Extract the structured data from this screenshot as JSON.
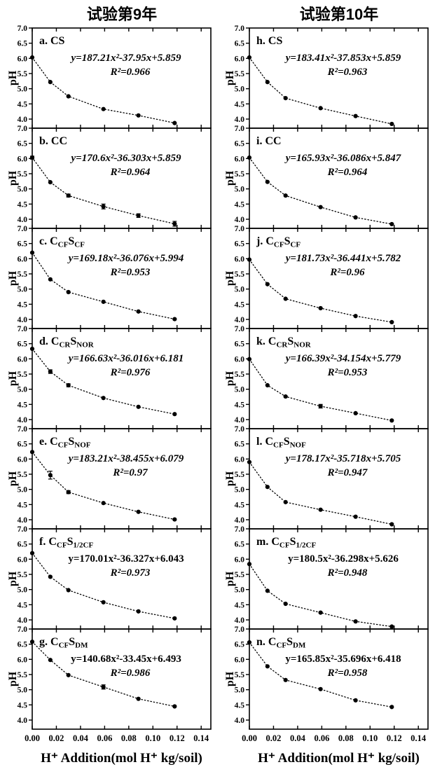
{
  "chart_data": {
    "type": "line",
    "marker": "filled-circle",
    "line_style": "dotted",
    "color": "#000000",
    "ylabel": "pH",
    "xlabel": "H⁺ Addition(mol H⁺ kg/soil)",
    "xlim": [
      0,
      0.148
    ],
    "ylim": [
      3.7,
      7.0
    ],
    "x_ticks": [
      "0.00",
      "0.02",
      "0.04",
      "0.06",
      "0.08",
      "0.10",
      "0.12",
      "0.14"
    ],
    "x_tick_values": [
      0,
      0.02,
      0.04,
      0.06,
      0.08,
      0.1,
      0.12,
      0.14
    ],
    "y_ticks": [
      "7.0",
      "6.5",
      "6.0",
      "5.5",
      "5.0",
      "4.5",
      "4.0"
    ],
    "y_tick_values": [
      7.0,
      6.5,
      6.0,
      5.5,
      5.0,
      4.5,
      4.0
    ],
    "x": [
      0,
      0.015,
      0.03,
      0.059,
      0.088,
      0.118
    ],
    "columns": [
      {
        "title": "试验第9年",
        "panels": [
          {
            "id": "a",
            "treatment": "CS",
            "equation": "y=187.21x²-37.95x+5.859",
            "eq_italic": true,
            "r2": "R²=0.966",
            "values": [
              6.03,
              5.22,
              4.75,
              4.33,
              4.12,
              3.87
            ],
            "err": [
              0,
              0,
              0,
              0,
              0,
              0
            ]
          },
          {
            "id": "b",
            "treatment": "CC",
            "equation": "y=170.6x²-36.303x+5.859",
            "eq_italic": true,
            "r2": "R²=0.964",
            "values": [
              6.03,
              5.22,
              4.78,
              4.42,
              4.12,
              3.85
            ],
            "err": [
              0.05,
              0,
              0.05,
              0.08,
              0.06,
              0.08
            ]
          },
          {
            "id": "c",
            "treatment": "C[CF]S[CF]",
            "equation": "y=169.18x²-36.076x+5.994",
            "eq_italic": true,
            "r2": "R²=0.953",
            "values": [
              6.2,
              5.32,
              4.9,
              4.58,
              4.26,
              4.01
            ],
            "err": [
              0,
              0,
              0,
              0,
              0,
              0
            ]
          },
          {
            "id": "d",
            "treatment": "C[CR]S[NOR]",
            "equation": "y=166.63x²-36.016x+6.181",
            "eq_italic": true,
            "r2": "R²=0.976",
            "values": [
              6.33,
              5.58,
              5.13,
              4.71,
              4.42,
              4.18
            ],
            "err": [
              0,
              0.06,
              0.05,
              0,
              0,
              0
            ]
          },
          {
            "id": "e",
            "treatment": "C[CF]S[NOF]",
            "equation": "y=183.21x²-38.455x+6.079",
            "eq_italic": true,
            "r2": "R²=0.97",
            "values": [
              6.23,
              5.47,
              4.91,
              4.55,
              4.26,
              4.01
            ],
            "err": [
              0,
              0.13,
              0.05,
              0,
              0,
              0
            ]
          },
          {
            "id": "f",
            "treatment": "C[CF]S[1/2CF]",
            "equation": "y=170.01x²-36.327x+6.043",
            "eq_italic": false,
            "r2": "R²=0.973",
            "values": [
              6.2,
              5.42,
              4.98,
              4.58,
              4.28,
              4.05
            ],
            "err": [
              0,
              0,
              0,
              0,
              0,
              0
            ]
          },
          {
            "id": "g",
            "treatment": "C[CF]S[DM]",
            "equation": "y=140.68x²-33.45x+6.493",
            "eq_italic": false,
            "r2": "R²=0.986",
            "values": [
              6.58,
              5.98,
              5.48,
              5.09,
              4.7,
              4.45
            ],
            "err": [
              0,
              0,
              0,
              0.07,
              0,
              0
            ]
          }
        ]
      },
      {
        "title": "试验第10年",
        "panels": [
          {
            "id": "h",
            "treatment": "CS",
            "equation": "y=183.41x²-37.853x+5.859",
            "eq_italic": true,
            "r2": "R²=0.963",
            "values": [
              6.03,
              5.22,
              4.69,
              4.36,
              4.1,
              3.84
            ],
            "err": [
              0,
              0,
              0,
              0,
              0,
              0
            ]
          },
          {
            "id": "i",
            "treatment": "CC",
            "equation": "y=165.93x²-36.086x+5.847",
            "eq_italic": true,
            "r2": "R²=0.964",
            "values": [
              6.03,
              5.23,
              4.78,
              4.4,
              4.06,
              3.84
            ],
            "err": [
              0,
              0,
              0,
              0,
              0,
              0
            ]
          },
          {
            "id": "j",
            "treatment": "C[CF]S[CF]",
            "equation": "y=181.73x²-36.441x+5.782",
            "eq_italic": true,
            "r2": "R²=0.96",
            "values": [
              5.97,
              5.16,
              4.68,
              4.37,
              4.11,
              3.91
            ],
            "err": [
              0,
              0,
              0,
              0,
              0,
              0
            ]
          },
          {
            "id": "k",
            "treatment": "C[CR]S[NOR]",
            "equation": "y=166.39x²-34.154x+5.779",
            "eq_italic": true,
            "r2": "R²=0.953",
            "values": [
              5.99,
              5.13,
              4.76,
              4.44,
              4.21,
              3.97
            ],
            "err": [
              0,
              0,
              0,
              0.06,
              0,
              0
            ]
          },
          {
            "id": "l",
            "treatment": "C[CF]S[NOF]",
            "equation": "y=178.17x²-35.718x+5.705",
            "eq_italic": true,
            "r2": "R²=0.947",
            "values": [
              5.9,
              5.08,
              4.58,
              4.33,
              4.1,
              3.85
            ],
            "err": [
              0,
              0,
              0,
              0,
              0,
              0
            ]
          },
          {
            "id": "m",
            "treatment": "C[CF]S[1/2CF]",
            "equation": "y=180.5x²-36.298x+5.626",
            "eq_italic": false,
            "r2": "R²=0.948",
            "values": [
              5.84,
              4.96,
              4.53,
              4.24,
              3.95,
              3.78
            ],
            "err": [
              0,
              0,
              0,
              0,
              0,
              0
            ]
          },
          {
            "id": "n",
            "treatment": "C[CF]S[DM]",
            "equation": "y=165.85x²-35.696x+6.418",
            "eq_italic": false,
            "r2": "R²=0.958",
            "values": [
              6.56,
              5.77,
              5.32,
              5.02,
              4.65,
              4.43
            ],
            "err": [
              0,
              0,
              0,
              0,
              0,
              0
            ]
          }
        ]
      }
    ]
  }
}
